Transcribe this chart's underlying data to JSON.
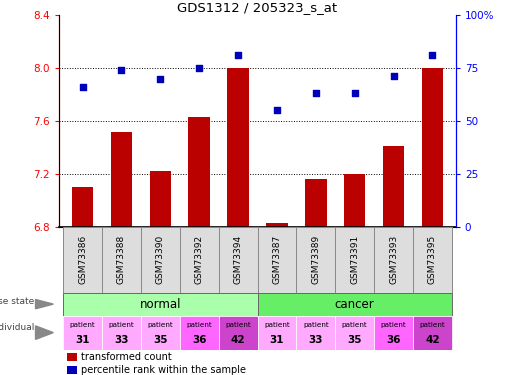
{
  "title": "GDS1312 / 205323_s_at",
  "samples": [
    "GSM73386",
    "GSM73388",
    "GSM73390",
    "GSM73392",
    "GSM73394",
    "GSM73387",
    "GSM73389",
    "GSM73391",
    "GSM73393",
    "GSM73395"
  ],
  "bar_values": [
    7.1,
    7.52,
    7.22,
    7.63,
    8.0,
    6.83,
    7.16,
    7.2,
    7.41,
    8.0
  ],
  "scatter_values": [
    66,
    74,
    70,
    75,
    81,
    55,
    63,
    63,
    71,
    81
  ],
  "ylim_left": [
    6.8,
    8.4
  ],
  "ylim_right": [
    0,
    100
  ],
  "yticks_left": [
    6.8,
    7.2,
    7.6,
    8.0,
    8.4
  ],
  "yticks_right": [
    0,
    25,
    50,
    75,
    100
  ],
  "ytick_labels_right": [
    "0",
    "25",
    "50",
    "75",
    "100%"
  ],
  "bar_color": "#bb0000",
  "scatter_color": "#0000bb",
  "normal_color": "#aaffaa",
  "cancer_color": "#66ee66",
  "individual_colors_normal": [
    "#ffaaff",
    "#ffaaff",
    "#ffaaff",
    "#ff66ff",
    "#cc44cc"
  ],
  "individual_colors_cancer": [
    "#ffaaff",
    "#ffaaff",
    "#ffaaff",
    "#ff66ff",
    "#cc44cc"
  ],
  "patients": [
    "31",
    "33",
    "35",
    "36",
    "42",
    "31",
    "33",
    "35",
    "36",
    "42"
  ],
  "label_bar": "transformed count",
  "label_scatter": "percentile rank within the sample"
}
